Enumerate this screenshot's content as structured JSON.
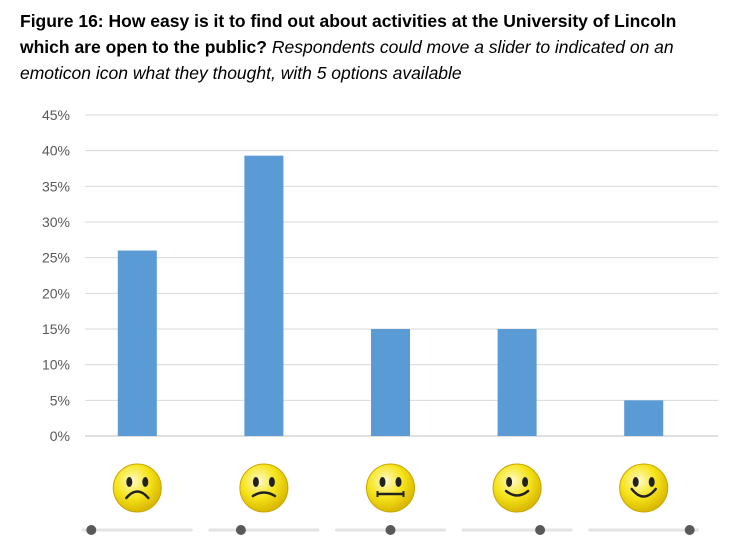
{
  "figure": {
    "caption_bold": "Figure 16: How easy is it to find out about activities at the University of Lincoln which are open to the public?",
    "caption_italic": "Respondents could move a slider to indicated on an emoticon icon what they thought, with 5 options available"
  },
  "chart_data": {
    "type": "bar",
    "categories": [
      "1",
      "2",
      "3",
      "4",
      "5"
    ],
    "values": [
      26,
      39.3,
      15,
      15,
      5
    ],
    "y_tick_labels": [
      "0%",
      "5%",
      "10%",
      "15%",
      "20%",
      "25%",
      "30%",
      "35%",
      "40%",
      "45%"
    ],
    "ylim": [
      0,
      45
    ],
    "grid": true,
    "bar_color": "#5b9bd5",
    "category_icons": [
      "frown-emoticon-icon",
      "sad-emoticon-icon",
      "neutral-emoticon-icon",
      "smile-emoticon-icon",
      "big-smile-emoticon-icon"
    ],
    "slider_levels": [
      0,
      0.25,
      0.5,
      0.75,
      1
    ]
  }
}
